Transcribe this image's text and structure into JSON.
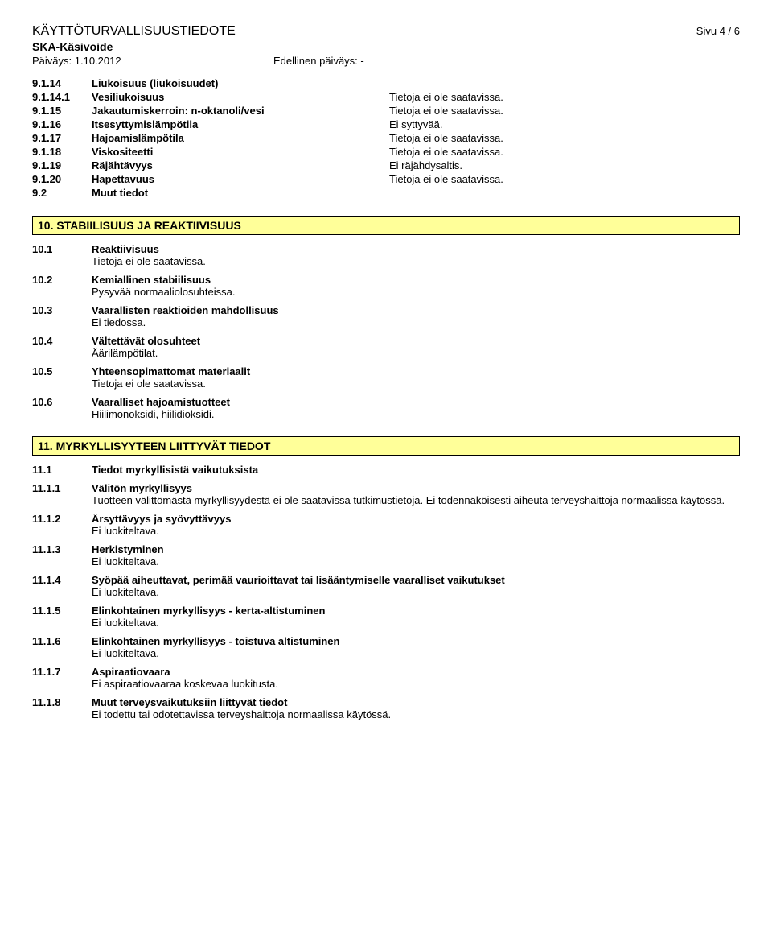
{
  "header": {
    "doc_title": "KÄYTTÖTURVALLISUUSTIEDOTE",
    "page_num": "Sivu 4 / 6",
    "sub_title": "SKA-Käsivoide",
    "date_left": "Päiväys: 1.10.2012",
    "date_right": "Edellinen päiväys: -"
  },
  "props": [
    {
      "num": "9.1.14",
      "label": "Liukoisuus (liukoisuudet)",
      "val": ""
    },
    {
      "num": "9.1.14.1",
      "label": "Vesiliukoisuus",
      "val": "Tietoja ei ole saatavissa."
    },
    {
      "num": "9.1.15",
      "label": "Jakautumiskerroin: n-oktanoli/vesi",
      "val": "Tietoja ei ole saatavissa."
    },
    {
      "num": "9.1.16",
      "label": "Itsesyttymislämpötila",
      "val": "Ei syttyvää."
    },
    {
      "num": "9.1.17",
      "label": "Hajoamislämpötila",
      "val": "Tietoja ei ole saatavissa."
    },
    {
      "num": "9.1.18",
      "label": "Viskositeetti",
      "val": "Tietoja ei ole saatavissa."
    },
    {
      "num": "9.1.19",
      "label": "Räjähtävyys",
      "val": "Ei räjähdysaltis."
    },
    {
      "num": "9.1.20",
      "label": "Hapettavuus",
      "val": "Tietoja ei ole saatavissa."
    },
    {
      "num": "9.2",
      "label": "Muut tiedot",
      "val": ""
    }
  ],
  "section10": {
    "title": "10. STABIILISUUS JA REAKTIIVISUUS",
    "items": [
      {
        "num": "10.1",
        "label": "Reaktiivisuus",
        "body": "Tietoja ei ole saatavissa."
      },
      {
        "num": "10.2",
        "label": "Kemiallinen stabiilisuus",
        "body": "Pysyvää normaaliolosuhteissa."
      },
      {
        "num": "10.3",
        "label": "Vaarallisten reaktioiden mahdollisuus",
        "body": "Ei tiedossa."
      },
      {
        "num": "10.4",
        "label": "Vältettävät olosuhteet",
        "body": "Äärilämpötilat."
      },
      {
        "num": "10.5",
        "label": "Yhteensopimattomat materiaalit",
        "body": "Tietoja ei ole saatavissa."
      },
      {
        "num": "10.6",
        "label": "Vaaralliset hajoamistuotteet",
        "body": "Hiilimonoksidi, hiilidioksidi."
      }
    ]
  },
  "section11": {
    "title": "11. MYRKYLLISYYTEEN LIITTYVÄT TIEDOT",
    "lead": {
      "num": "11.1",
      "label": "Tiedot myrkyllisistä vaikutuksista"
    },
    "items": [
      {
        "num": "11.1.1",
        "label": "Välitön myrkyllisyys",
        "body": "Tuotteen välittömästä myrkyllisyydestä ei ole saatavissa tutkimustietoja. Ei todennäköisesti aiheuta terveyshaittoja normaalissa käytössä."
      },
      {
        "num": "11.1.2",
        "label": "Ärsyttävyys ja syövyttävyys",
        "body": "Ei luokiteltava."
      },
      {
        "num": "11.1.3",
        "label": "Herkistyminen",
        "body": "Ei luokiteltava."
      },
      {
        "num": "11.1.4",
        "label": "Syöpää aiheuttavat, perimää vaurioittavat tai lisääntymiselle vaaralliset vaikutukset",
        "body": "Ei luokiteltava."
      },
      {
        "num": "11.1.5",
        "label": "Elinkohtainen myrkyllisyys - kerta-altistuminen",
        "body": "Ei luokiteltava."
      },
      {
        "num": "11.1.6",
        "label": "Elinkohtainen myrkyllisyys - toistuva altistuminen",
        "body": "Ei luokiteltava."
      },
      {
        "num": "11.1.7",
        "label": "Aspiraatiovaara",
        "body": "Ei aspiraatiovaaraa koskevaa luokitusta."
      },
      {
        "num": "11.1.8",
        "label": "Muut terveysvaikutuksiin liittyvät tiedot",
        "body": "Ei todettu tai odotettavissa terveyshaittoja normaalissa käytössä."
      }
    ]
  }
}
